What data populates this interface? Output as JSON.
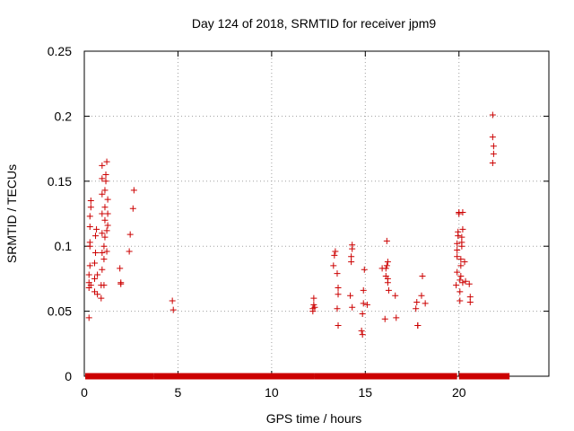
{
  "chart_data": {
    "type": "scatter",
    "title": "Day 124 of 2018, SRMTID for receiver jpm9",
    "xlabel": "GPS time / hours",
    "ylabel": "SRMTID / TECUs",
    "xlim": [
      0,
      24.8
    ],
    "ylim": [
      0,
      0.25
    ],
    "xticks": [
      0,
      5,
      10,
      15,
      20
    ],
    "xtick_labels": [
      "0",
      "5",
      "10",
      "15",
      "20"
    ],
    "yticks": [
      0,
      0.05,
      0.1,
      0.15,
      0.2,
      0.25
    ],
    "ytick_labels": [
      "0",
      "0.05",
      "0.1",
      "0.15",
      "0.2",
      "0.25"
    ],
    "grid": true,
    "marker": "+",
    "marker_color": "#cc0000",
    "series": [
      {
        "name": "jpm9",
        "points": [
          [
            0.25,
            0.045
          ],
          [
            0.25,
            0.068
          ],
          [
            0.25,
            0.072
          ],
          [
            0.25,
            0.078
          ],
          [
            0.3,
            0.085
          ],
          [
            0.3,
            0.1
          ],
          [
            0.3,
            0.103
          ],
          [
            0.3,
            0.115
          ],
          [
            0.3,
            0.123
          ],
          [
            0.35,
            0.13
          ],
          [
            0.35,
            0.135
          ],
          [
            0.35,
            0.07
          ],
          [
            0.55,
            0.065
          ],
          [
            0.55,
            0.075
          ],
          [
            0.55,
            0.087
          ],
          [
            0.6,
            0.095
          ],
          [
            0.6,
            0.108
          ],
          [
            0.65,
            0.113
          ],
          [
            0.7,
            0.063
          ],
          [
            0.7,
            0.078
          ],
          [
            0.9,
            0.06
          ],
          [
            0.9,
            0.07
          ],
          [
            0.95,
            0.082
          ],
          [
            0.95,
            0.095
          ],
          [
            0.95,
            0.11
          ],
          [
            0.95,
            0.125
          ],
          [
            0.95,
            0.14
          ],
          [
            0.95,
            0.152
          ],
          [
            0.95,
            0.162
          ],
          [
            1.05,
            0.07
          ],
          [
            1.05,
            0.09
          ],
          [
            1.05,
            0.1
          ],
          [
            1.1,
            0.107
          ],
          [
            1.1,
            0.12
          ],
          [
            1.1,
            0.13
          ],
          [
            1.1,
            0.143
          ],
          [
            1.15,
            0.15
          ],
          [
            1.15,
            0.155
          ],
          [
            1.2,
            0.096
          ],
          [
            1.2,
            0.112
          ],
          [
            1.25,
            0.116
          ],
          [
            1.25,
            0.125
          ],
          [
            1.25,
            0.136
          ],
          [
            1.2,
            0.165
          ],
          [
            1.9,
            0.083
          ],
          [
            1.95,
            0.072
          ],
          [
            1.95,
            0.071
          ],
          [
            2.4,
            0.096
          ],
          [
            2.45,
            0.109
          ],
          [
            2.6,
            0.129
          ],
          [
            2.65,
            0.143
          ],
          [
            4.7,
            0.058
          ],
          [
            4.75,
            0.051
          ],
          [
            12.2,
            0.05
          ],
          [
            12.2,
            0.052
          ],
          [
            12.25,
            0.055
          ],
          [
            12.25,
            0.06
          ],
          [
            12.3,
            0.053
          ],
          [
            13.3,
            0.085
          ],
          [
            13.35,
            0.093
          ],
          [
            13.4,
            0.096
          ],
          [
            13.5,
            0.079
          ],
          [
            13.55,
            0.068
          ],
          [
            13.55,
            0.063
          ],
          [
            13.5,
            0.052
          ],
          [
            13.55,
            0.039
          ],
          [
            14.2,
            0.062
          ],
          [
            14.25,
            0.088
          ],
          [
            14.25,
            0.092
          ],
          [
            14.3,
            0.098
          ],
          [
            14.3,
            0.101
          ],
          [
            14.3,
            0.053
          ],
          [
            14.8,
            0.035
          ],
          [
            14.85,
            0.032
          ],
          [
            14.85,
            0.048
          ],
          [
            14.9,
            0.056
          ],
          [
            14.9,
            0.066
          ],
          [
            14.95,
            0.082
          ],
          [
            15.1,
            0.055
          ],
          [
            15.9,
            0.083
          ],
          [
            16.05,
            0.044
          ],
          [
            16.1,
            0.077
          ],
          [
            16.1,
            0.083
          ],
          [
            16.15,
            0.085
          ],
          [
            16.2,
            0.088
          ],
          [
            16.2,
            0.075
          ],
          [
            16.25,
            0.066
          ],
          [
            16.15,
            0.104
          ],
          [
            16.2,
            0.072
          ],
          [
            16.6,
            0.062
          ],
          [
            16.65,
            0.045
          ],
          [
            17.7,
            0.052
          ],
          [
            17.75,
            0.057
          ],
          [
            17.8,
            0.039
          ],
          [
            17.8,
            0.039
          ],
          [
            18.0,
            0.062
          ],
          [
            18.05,
            0.077
          ],
          [
            18.2,
            0.056
          ],
          [
            19.85,
            0.07
          ],
          [
            19.9,
            0.08
          ],
          [
            19.9,
            0.092
          ],
          [
            19.9,
            0.097
          ],
          [
            19.9,
            0.102
          ],
          [
            19.95,
            0.108
          ],
          [
            19.95,
            0.111
          ],
          [
            20.0,
            0.126
          ],
          [
            20.0,
            0.125
          ],
          [
            20.05,
            0.058
          ],
          [
            20.05,
            0.065
          ],
          [
            20.05,
            0.074
          ],
          [
            20.1,
            0.077
          ],
          [
            20.1,
            0.085
          ],
          [
            20.1,
            0.09
          ],
          [
            20.15,
            0.1
          ],
          [
            20.15,
            0.103
          ],
          [
            20.15,
            0.107
          ],
          [
            20.2,
            0.113
          ],
          [
            20.2,
            0.126
          ],
          [
            20.2,
            0.072
          ],
          [
            20.3,
            0.088
          ],
          [
            20.35,
            0.073
          ],
          [
            20.55,
            0.071
          ],
          [
            20.6,
            0.061
          ],
          [
            20.6,
            0.057
          ],
          [
            21.8,
            0.201
          ],
          [
            21.8,
            0.184
          ],
          [
            21.85,
            0.177
          ],
          [
            21.85,
            0.171
          ],
          [
            21.8,
            0.164
          ]
        ],
        "zero_segments": [
          [
            0.05,
            3.7
          ],
          [
            3.7,
            12.3
          ],
          [
            12.3,
            19.9
          ],
          [
            20.0,
            22.7
          ]
        ]
      }
    ]
  }
}
